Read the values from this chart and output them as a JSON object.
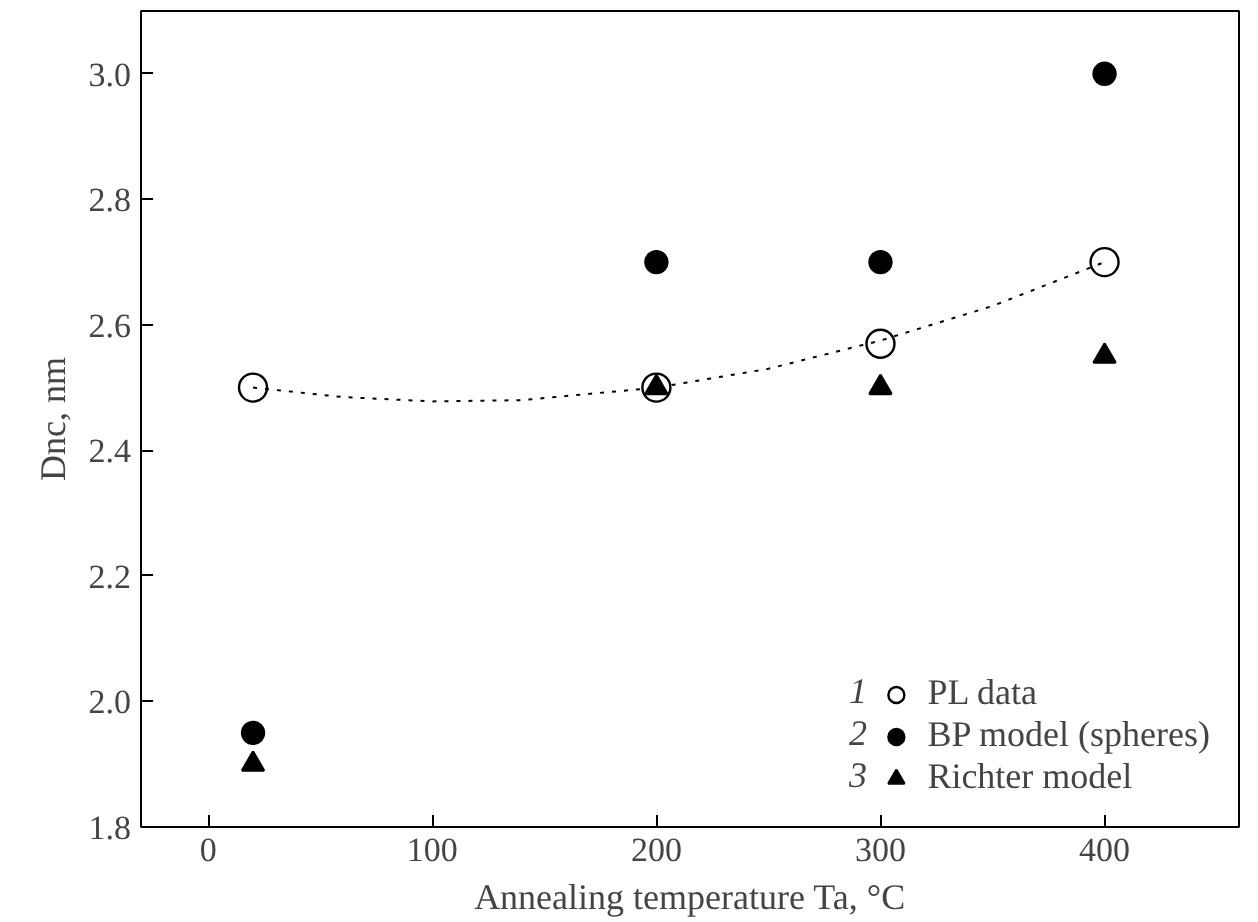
{
  "chart_data": {
    "type": "scatter",
    "xlabel": "Annealing temperature Ta, °C",
    "ylabel": "Dnc, nm",
    "xlim": [
      -30,
      460
    ],
    "ylim": [
      1.8,
      3.1
    ],
    "xticks": [
      0,
      100,
      200,
      300,
      400
    ],
    "yticks": [
      1.8,
      {
        "value": 2,
        "label": "2.0"
      },
      2.2,
      2.4,
      2.6,
      2.8,
      {
        "value": 3,
        "label": "3.0"
      }
    ],
    "grid": false,
    "legend": "bottom right",
    "annotations": [
      "1",
      "2",
      "3"
    ],
    "x": [
      20,
      200,
      300,
      400
    ],
    "series": [
      {
        "name": "PL data",
        "color": "#000000",
        "marker": "circle_open",
        "values": [
          2.5,
          2.5,
          2.57,
          2.7
        ]
      },
      {
        "name": "BP model (spheres)",
        "color": "#000000",
        "marker": "circle",
        "values": [
          1.95,
          2.7,
          2.7,
          3.0
        ]
      },
      {
        "name": "Richter model",
        "color": "#000000",
        "marker": "triangle",
        "values": [
          1.9,
          2.5,
          2.5,
          2.55
        ]
      },
      {
        "type": "line",
        "line_style": "dotted",
        "color": "#000000",
        "x": [
          20,
          60,
          100,
          140,
          200,
          250,
          300,
          350,
          400
        ],
        "values": [
          2.5,
          2.485,
          2.478,
          2.48,
          2.5,
          2.53,
          2.575,
          2.63,
          2.7
        ]
      }
    ]
  }
}
